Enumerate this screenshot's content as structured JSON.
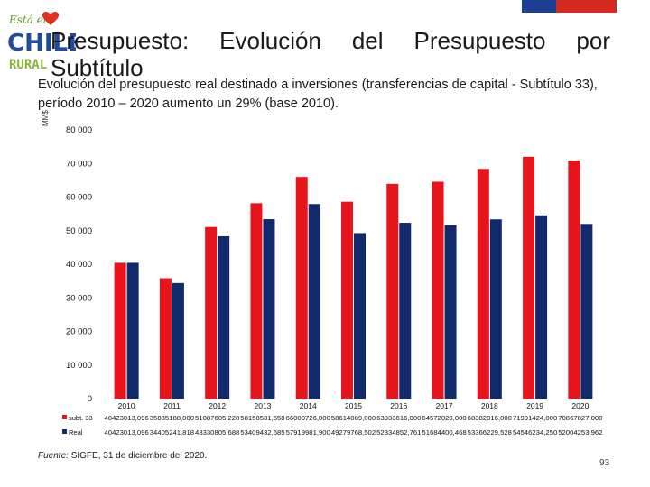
{
  "logo": {
    "word_top": "Está el",
    "word_main": "CHILE",
    "word_bottom": "RURAL"
  },
  "title": "Presupuesto: Evolución del Presupuesto por Subtítulo",
  "subtitle": "Evolución del presupuesto real destinado a inversiones (transferencias de capital - Subtítulo 33), período 2010 – 2020 aumento un 29% (base 2010).",
  "source_label": "Fuente:",
  "source_text": " SIGFE, 31 de diciembre del 2020.",
  "page_number": "93",
  "chart_data": {
    "type": "bar",
    "ylabel": "MM$",
    "ylim": [
      0,
      80000
    ],
    "yticks": [
      "0",
      "10 000",
      "20 000",
      "30 000",
      "40 000",
      "50 000",
      "60 000",
      "70 000",
      "80 000"
    ],
    "categories": [
      "2010",
      "2011",
      "2012",
      "2013",
      "2014",
      "2015",
      "2016",
      "2017",
      "2018",
      "2019",
      "2020"
    ],
    "series": [
      {
        "name": "subt. 33",
        "color": "#e8141c",
        "values": [
          40423,
          35835,
          51087,
          58158,
          66000,
          58614,
          63933,
          64572,
          68382,
          71991,
          70867
        ],
        "table_values": [
          "40423013,096",
          "35835188,000",
          "51087605,228",
          "58158531,558",
          "66000726,000",
          "58614089,000",
          "63933616,000",
          "64572020,000",
          "68382016,000",
          "71991424,000",
          "70867827,000"
        ]
      },
      {
        "name": "Real",
        "color": "#102a6b",
        "values": [
          40423,
          34405,
          48330,
          53409,
          57919,
          49279,
          52334,
          51684,
          53366,
          54546,
          52004
        ],
        "table_values": [
          "40423013,096",
          "34405241,818",
          "48330805,688",
          "53409432,685",
          "57919981,900",
          "49279768,502",
          "52334852,761",
          "51684400,468",
          "53366229,528",
          "54546234,250",
          "52004253,962"
        ]
      }
    ]
  }
}
